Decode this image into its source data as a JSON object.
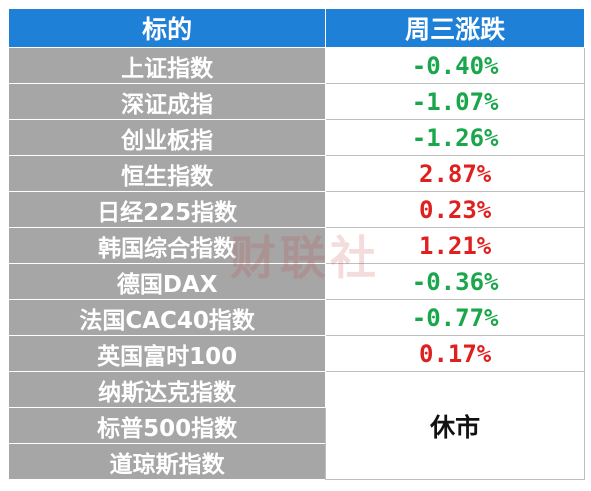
{
  "table": {
    "header": [
      "标的",
      "周三涨跌"
    ],
    "rows": [
      {
        "name": "上证指数",
        "change": "-0.40%",
        "color": "#1aa64b"
      },
      {
        "name": "深证成指",
        "change": "-1.07%",
        "color": "#1aa64b"
      },
      {
        "name": "创业板指",
        "change": "-1.26%",
        "color": "#1aa64b"
      },
      {
        "name": "恒生指数",
        "change": "2.87%",
        "color": "#e0201f"
      },
      {
        "name": "日经225指数",
        "change": "0.23%",
        "color": "#e0201f"
      },
      {
        "name": "韩国综合指数",
        "change": "1.21%",
        "color": "#e0201f"
      },
      {
        "name": "德国DAX",
        "change": "-0.36%",
        "color": "#1aa64b"
      },
      {
        "name": "法国CAC40指数",
        "change": "-0.77%",
        "color": "#1aa64b"
      },
      {
        "name": "英国富时100",
        "change": "0.17%",
        "color": "#e0201f"
      }
    ],
    "closed_rows": [
      "纳斯达克指数",
      "标普500指数",
      "道琼斯指数"
    ],
    "closed_label": "休市"
  },
  "watermark": "财联社"
}
